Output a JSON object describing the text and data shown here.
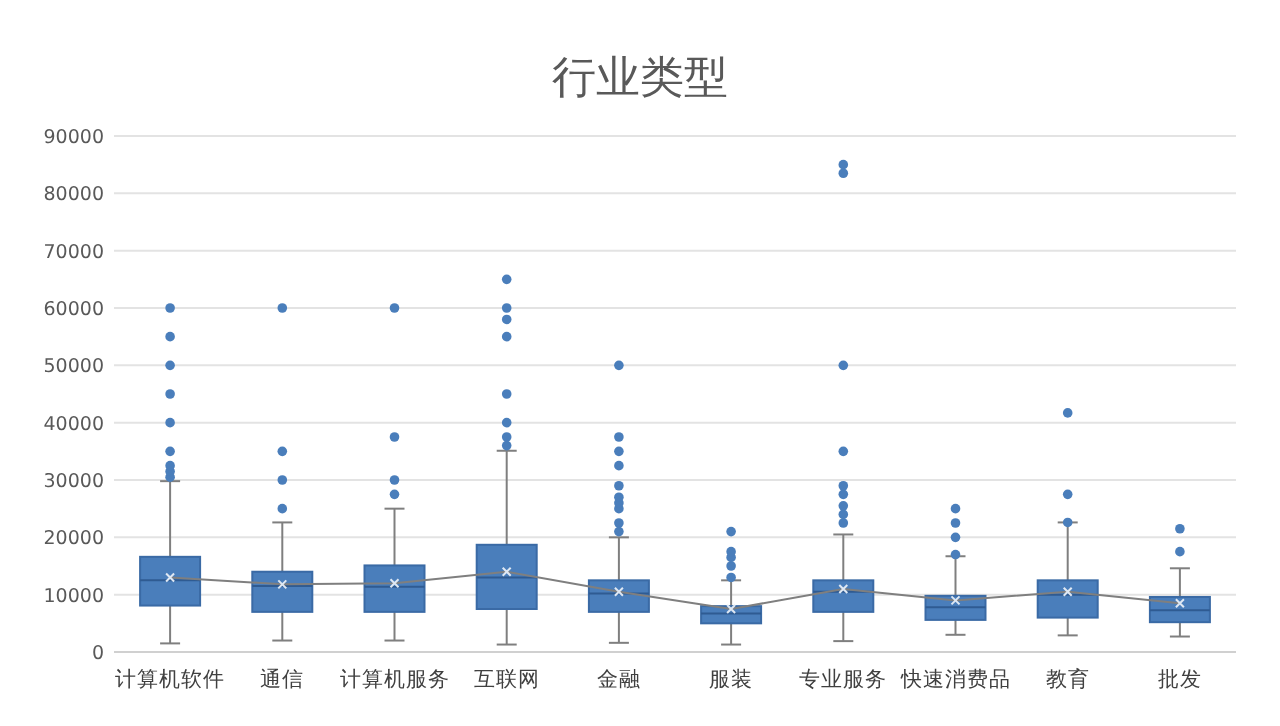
{
  "chart_data": {
    "type": "box",
    "title": "行业类型",
    "categories": [
      "计算机软件",
      "通信",
      "计算机服务",
      "互联网",
      "金融",
      "服装",
      "专业服务",
      "快速消费品",
      "教育",
      "批发"
    ],
    "color": "#4a7ebb",
    "boxes": [
      {
        "low": 1500,
        "q1": 8100,
        "median": 12500,
        "q3": 16600,
        "high": 29800,
        "mean": 13000,
        "outliers": [
          30500,
          31500,
          32500,
          35000,
          40000,
          45000,
          50000,
          55000,
          60000
        ]
      },
      {
        "low": 2000,
        "q1": 7000,
        "median": 11500,
        "q3": 14000,
        "high": 22600,
        "mean": 11800,
        "outliers": [
          25000,
          30000,
          35000,
          60000
        ]
      },
      {
        "low": 2000,
        "q1": 7000,
        "median": 11400,
        "q3": 15100,
        "high": 25000,
        "mean": 12000,
        "outliers": [
          27500,
          30000,
          37500,
          60000
        ]
      },
      {
        "low": 1300,
        "q1": 7500,
        "median": 13000,
        "q3": 18700,
        "high": 35100,
        "mean": 14000,
        "outliers": [
          36000,
          37500,
          40000,
          45000,
          55000,
          58000,
          60000,
          65000
        ]
      },
      {
        "low": 1600,
        "q1": 7000,
        "median": 10200,
        "q3": 12500,
        "high": 20000,
        "mean": 10500,
        "outliers": [
          21000,
          22500,
          25000,
          26000,
          27000,
          29000,
          32500,
          35000,
          37500,
          50000
        ]
      },
      {
        "low": 1300,
        "q1": 5000,
        "median": 6700,
        "q3": 8000,
        "high": 12500,
        "mean": 7500,
        "outliers": [
          13000,
          15000,
          16500,
          17500,
          21000
        ]
      },
      {
        "low": 1900,
        "q1": 7000,
        "median": 10500,
        "q3": 12500,
        "high": 20500,
        "mean": 11000,
        "outliers": [
          22500,
          24000,
          25500,
          27500,
          29000,
          35000,
          50000,
          83500,
          85000
        ]
      },
      {
        "low": 3000,
        "q1": 5600,
        "median": 7800,
        "q3": 9800,
        "high": 16700,
        "mean": 9000,
        "outliers": [
          17000,
          20000,
          22500,
          25000
        ]
      },
      {
        "low": 2900,
        "q1": 6000,
        "median": 10000,
        "q3": 12500,
        "high": 22600,
        "mean": 10500,
        "outliers": [
          22600,
          27500,
          41700
        ]
      },
      {
        "low": 2700,
        "q1": 5200,
        "median": 7300,
        "q3": 9600,
        "high": 14600,
        "mean": 8500,
        "outliers": [
          17500,
          21500
        ]
      }
    ],
    "ylim": [
      0,
      90000
    ],
    "yticks": [
      0,
      10000,
      20000,
      30000,
      40000,
      50000,
      60000,
      70000,
      80000,
      90000
    ],
    "series": [
      {
        "type": "line",
        "color": "#7f7f7f",
        "values": [
          13000,
          11800,
          12000,
          14000,
          10500,
          7500,
          11000,
          9000,
          10500,
          8500
        ]
      }
    ],
    "grid": "y"
  }
}
